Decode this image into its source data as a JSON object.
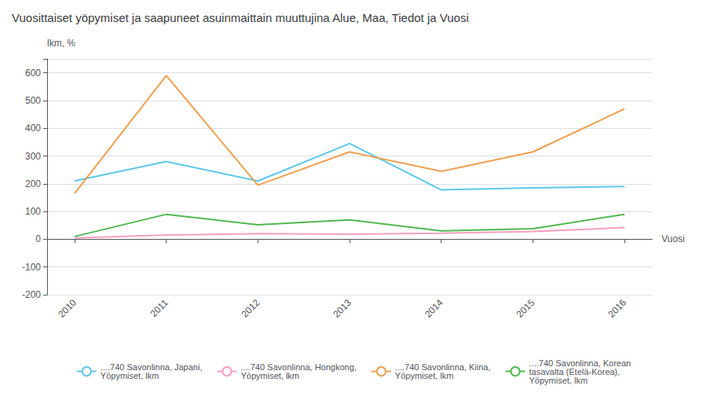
{
  "chart_data": {
    "type": "line",
    "title": "Vuosittaiset yöpymiset ja saapuneet asuinmaittain muuttujina Alue, Maa, Tiedot ja Vuosi",
    "ylabel": "lkm, %",
    "xlabel": "Vuosi",
    "x": [
      2010,
      2011,
      2012,
      2013,
      2014,
      2015,
      2016
    ],
    "series": [
      {
        "name": "....740 Savonlinna, Japani,\nYöpymiset, lkm",
        "color": "#5BC8E8",
        "values": [
          210,
          280,
          210,
          345,
          178,
          185,
          190
        ]
      },
      {
        "name": "....740 Savonlinna, Hongkong,\nYöpymiset, lkm",
        "color": "#F4A0C0",
        "values": [
          5,
          15,
          20,
          18,
          22,
          28,
          42
        ]
      },
      {
        "name": "....740 Savonlinna, Kiina,\nYöpymiset, lkm",
        "color": "#F0A050",
        "values": [
          165,
          590,
          195,
          315,
          245,
          315,
          470
        ]
      },
      {
        "name": "....740 Savonlinna, Korean\ntasavalta (Etelä-Korea),\nYöpymiset, lkm",
        "color": "#50B850",
        "values": [
          10,
          90,
          52,
          70,
          30,
          38,
          90
        ]
      }
    ],
    "xlim": [
      2009.7,
      2016.3
    ],
    "xticks": [
      2010,
      2011,
      2012,
      2013,
      2014,
      2015,
      2016
    ],
    "ylim": [
      -200,
      650
    ],
    "yticks": [
      -200,
      -100,
      0,
      100,
      200,
      300,
      400,
      500,
      600
    ],
    "grid": true,
    "legend": "lower left"
  }
}
